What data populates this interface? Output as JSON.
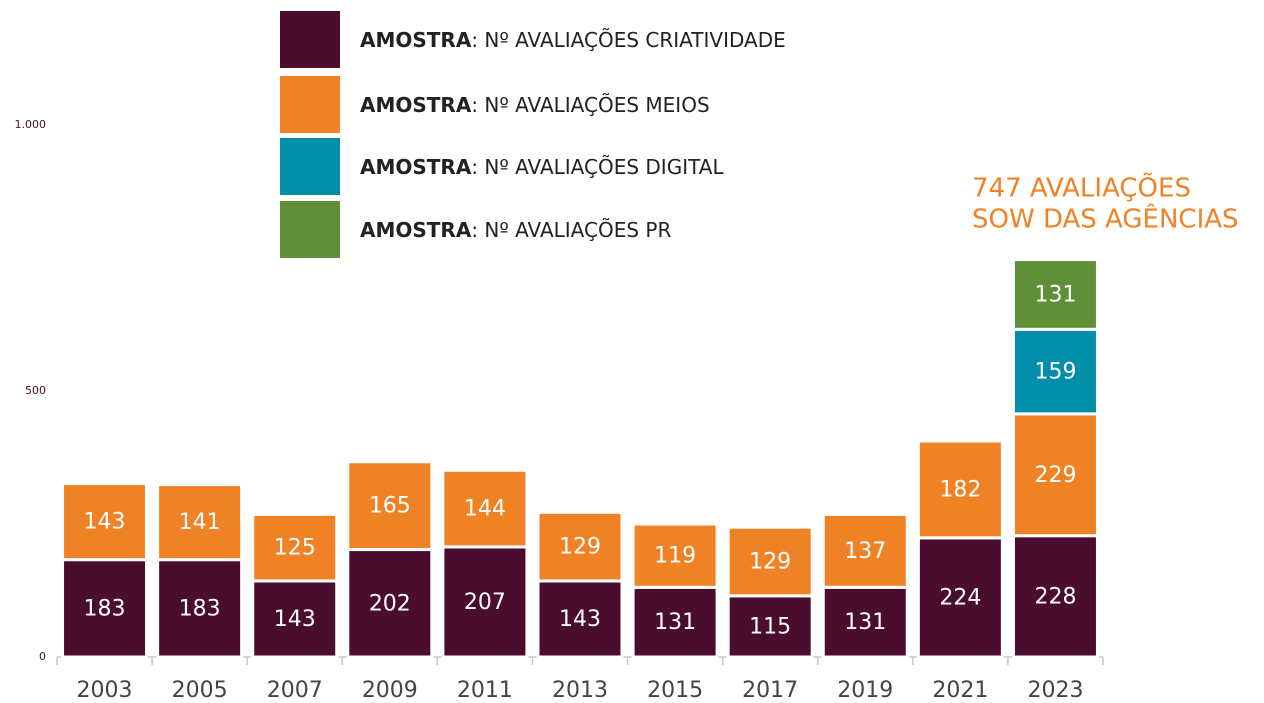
{
  "chart_data": {
    "type": "stacked_bar",
    "categories": [
      "2003",
      "2005",
      "2007",
      "2009",
      "2011",
      "2013",
      "2015",
      "2017",
      "2019",
      "2021",
      "2023"
    ],
    "series": [
      {
        "name": "AMOSTRA: Nº AVALIAÇÕES CRIATIVIDADE",
        "color": "#4a0d2e",
        "values": [
          183,
          183,
          143,
          202,
          207,
          143,
          131,
          115,
          131,
          224,
          228
        ]
      },
      {
        "name": "AMOSTRA: Nº AVALIAÇÕES MEIOS",
        "color": "#f08226",
        "values": [
          143,
          141,
          125,
          165,
          144,
          129,
          119,
          129,
          137,
          182,
          229
        ]
      },
      {
        "name": "AMOSTRA: Nº AVALIAÇÕES DIGITAL",
        "color": "#008ea9",
        "values": [
          null,
          null,
          null,
          null,
          null,
          null,
          null,
          null,
          null,
          null,
          159
        ]
      },
      {
        "name": "AMOSTRA: Nº AVALIAÇÕES PR",
        "color": "#5f8f36",
        "values": [
          null,
          null,
          null,
          null,
          null,
          null,
          null,
          null,
          null,
          null,
          131
        ]
      }
    ],
    "annotation": [
      "747 AVALIAÇÕES",
      "SOW DAS AGÊNCIAS"
    ],
    "ylim": [
      0,
      1235
    ],
    "yticks": [
      0,
      500,
      {
        "value": 1000,
        "label": "1.000"
      }
    ]
  }
}
